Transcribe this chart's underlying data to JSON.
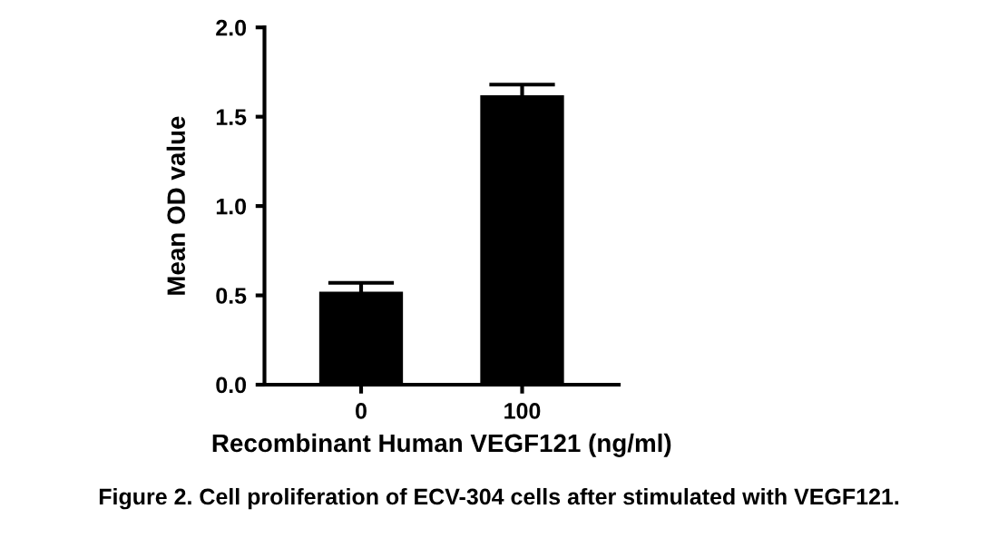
{
  "chart_data": {
    "type": "bar",
    "xlabel": "Recombinant Human VEGF121 (ng/ml)",
    "ylabel": "Mean OD value",
    "categories": [
      "0",
      "100"
    ],
    "values": [
      0.52,
      1.62
    ],
    "errors": [
      0.05,
      0.06
    ],
    "color": "#000000",
    "ylim": [
      0,
      2.0
    ],
    "yticks": [
      {
        "value": 0,
        "label": "0.0"
      },
      {
        "value": 0.5,
        "label": "0.5"
      },
      {
        "value": 1.0,
        "label": "1.0"
      },
      {
        "value": 1.5,
        "label": "1.5"
      },
      {
        "value": 2.0,
        "label": "2.0"
      }
    ],
    "grid": false,
    "annotations": [
      "Figure 2. Cell proliferation of ECV-304 cells after stimulated with VEGF121."
    ]
  }
}
